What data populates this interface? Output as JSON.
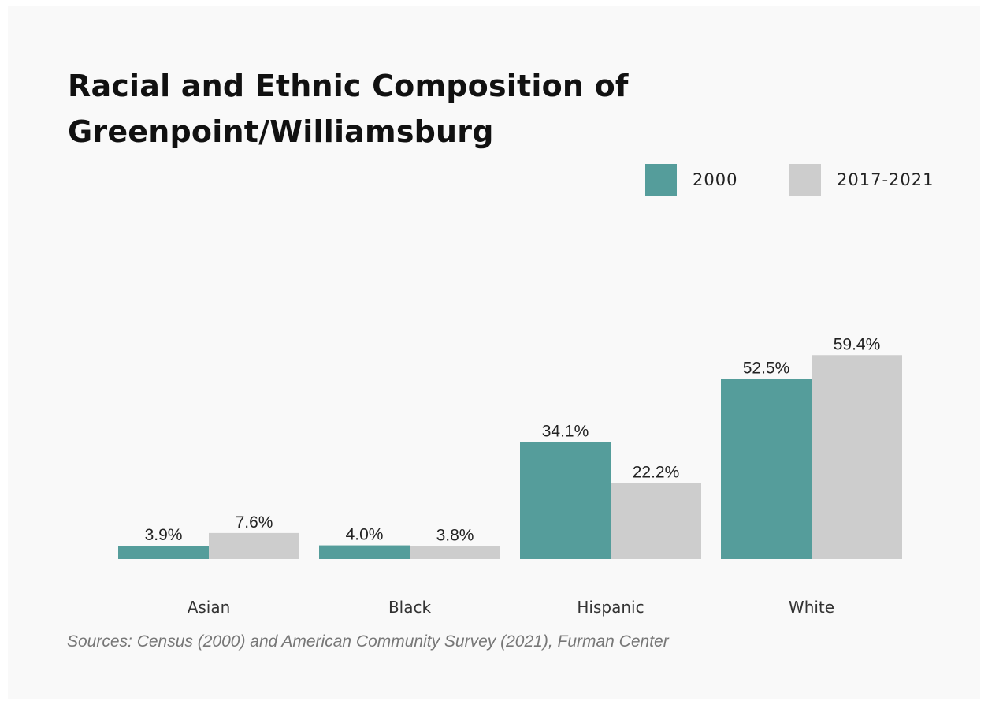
{
  "colors": {
    "series_2000": "#559d9b",
    "series_2017_2021": "#cdcdcd"
  },
  "legend": {
    "items": [
      {
        "label": "2000",
        "color": "#559d9b"
      },
      {
        "label": "2017-2021",
        "color": "#cdcdcd"
      }
    ]
  },
  "source": "Sources: Census (2000) and American Community Survey (2021), Furman Center",
  "chart_data": {
    "type": "bar",
    "title": "Racial and Ethnic Composition of Greenpoint/Williamsburg",
    "categories": [
      "Asian",
      "Black",
      "Hispanic",
      "White"
    ],
    "series": [
      {
        "name": "2000",
        "values": [
          3.9,
          4.0,
          34.1,
          52.5
        ],
        "labels": [
          "3.9%",
          "4.0%",
          "34.1%",
          "52.5%"
        ]
      },
      {
        "name": "2017-2021",
        "values": [
          7.6,
          3.8,
          22.2,
          59.4
        ],
        "labels": [
          "7.6%",
          "3.8%",
          "22.2%",
          "59.4%"
        ]
      }
    ],
    "ylim": [
      0,
      60
    ],
    "grid": false,
    "legend_position": "top-right"
  }
}
